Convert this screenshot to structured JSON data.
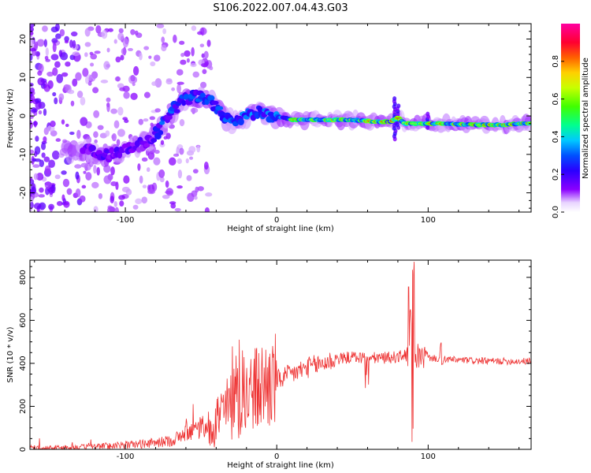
{
  "figure": {
    "title": "S106.2022.007.04.43.G03"
  },
  "chart_data": [
    {
      "type": "heatmap",
      "xlabel": "Height of straight line (km)",
      "ylabel": "Frequency (Hz)",
      "xlim": [
        -163,
        168
      ],
      "ylim": [
        -25,
        24
      ],
      "xticks": [
        -100,
        0,
        100
      ],
      "xtick_labels": [
        "-100",
        "0",
        "100"
      ],
      "yticks": [
        -20,
        -10,
        0,
        10,
        20
      ],
      "ytick_labels": [
        "-20",
        "-10",
        "0",
        "10",
        "20"
      ],
      "ridge_x": [
        -125,
        -115,
        -105,
        -95,
        -85,
        -78,
        -70,
        -62,
        -55,
        -50,
        -45,
        -40,
        -35,
        -28,
        -20,
        -12,
        -5,
        0,
        10,
        30,
        50,
        65,
        75,
        80,
        85,
        95,
        110,
        130,
        150,
        168
      ],
      "ridge_y": [
        -9,
        -10,
        -10,
        -8,
        -7,
        -4,
        1,
        4,
        5,
        5,
        4,
        2,
        0,
        -2,
        0,
        1,
        0,
        0,
        -1,
        -1,
        -1,
        -1.5,
        -1.5,
        -0.5,
        -2,
        -2,
        -2,
        -2.3,
        -2.3,
        -1.8
      ],
      "colorbar": {
        "label": "Normalized spectral amplitude",
        "range": [
          0,
          1
        ],
        "ticks": [
          0.0,
          0.2,
          0.4,
          0.6,
          0.8
        ],
        "tick_labels": [
          "0.0",
          "0.2",
          "0.4",
          "0.6",
          "0.8"
        ]
      },
      "grid": false
    },
    {
      "type": "line",
      "xlabel": "Height of straight line (km)",
      "ylabel": "SNR (10 * v/v)",
      "xlim": [
        -163,
        168
      ],
      "ylim": [
        0,
        880
      ],
      "xticks": [
        -100,
        0,
        100
      ],
      "xtick_labels": [
        "-100",
        "0",
        "100"
      ],
      "yticks": [
        0,
        200,
        400,
        600,
        800
      ],
      "ytick_labels": [
        "0",
        "200",
        "400",
        "600",
        "800"
      ],
      "trend_x": [
        -163,
        -130,
        -100,
        -80,
        -70,
        -60,
        -50,
        -40,
        -30,
        -20,
        -10,
        0,
        10,
        20,
        30,
        40,
        50,
        60,
        70,
        80,
        85,
        90,
        95,
        100,
        110,
        120,
        140,
        168
      ],
      "trend_y": [
        5,
        10,
        20,
        30,
        40,
        70,
        100,
        140,
        200,
        250,
        290,
        320,
        350,
        380,
        400,
        420,
        430,
        425,
        425,
        430,
        440,
        440,
        430,
        425,
        420,
        415,
        410,
        410
      ],
      "series": [
        {
          "name": "",
          "color": "#ee3333"
        }
      ],
      "grid": false
    }
  ]
}
